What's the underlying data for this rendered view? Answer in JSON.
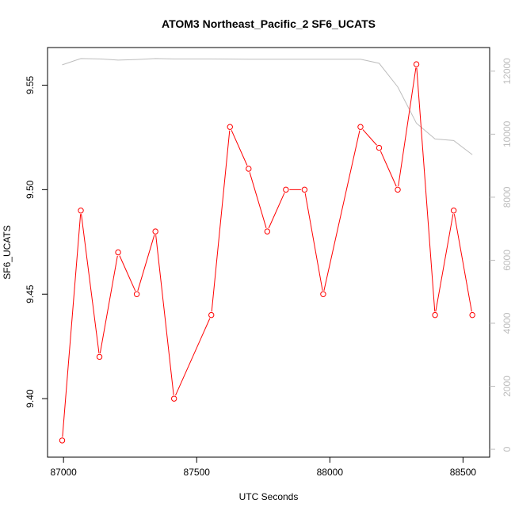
{
  "chart_data": {
    "type": "line",
    "title": "ATOM3 Northeast_Pacific_2 SF6_UCATS",
    "xlabel": "UTC Seconds",
    "ylabel": "SF6_UCATS",
    "xlim": [
      86940,
      88600
    ],
    "ylim": [
      9.372,
      9.568
    ],
    "y2lim": [
      -250,
      12750
    ],
    "x_ticks": [
      87000,
      87500,
      88000,
      88500
    ],
    "x_tick_labels": [
      "87000",
      "87500",
      "88000",
      "88500"
    ],
    "y_ticks": [
      9.4,
      9.45,
      9.5,
      9.55
    ],
    "y_tick_labels": [
      "9.40",
      "9.45",
      "9.50",
      "9.55"
    ],
    "y2_ticks": [
      0,
      2000,
      4000,
      6000,
      8000,
      10000,
      12000
    ],
    "y2_tick_labels": [
      "0",
      "2000",
      "4000",
      "6000",
      "8000",
      "10000",
      "12000"
    ],
    "series": [
      {
        "color": "#ff0000",
        "axis": "left",
        "marker": "circle",
        "x": [
          86995,
          87065,
          87135,
          87205,
          87275,
          87345,
          87415,
          87555,
          87625,
          87695,
          87765,
          87835,
          87905,
          87975,
          88115,
          88185,
          88255,
          88325,
          88395,
          88465,
          88535
        ],
        "y": [
          9.38,
          9.49,
          9.42,
          9.47,
          9.45,
          9.48,
          9.4,
          9.44,
          9.53,
          9.51,
          9.48,
          9.5,
          9.5,
          9.45,
          9.53,
          9.52,
          9.5,
          9.56,
          9.44,
          9.49,
          9.44
        ]
      },
      {
        "color": "#bdbdbd",
        "axis": "right",
        "marker": "none",
        "x": [
          86995,
          87065,
          87135,
          87205,
          87275,
          87345,
          87415,
          87555,
          87625,
          87695,
          87765,
          87835,
          87905,
          87975,
          88115,
          88185,
          88255,
          88325,
          88395,
          88465,
          88535
        ],
        "y": [
          12200,
          12400,
          12390,
          12350,
          12370,
          12400,
          12390,
          12390,
          12385,
          12380,
          12380,
          12380,
          12380,
          12380,
          12380,
          12250,
          11500,
          10350,
          9850,
          9800,
          9350
        ]
      }
    ]
  }
}
